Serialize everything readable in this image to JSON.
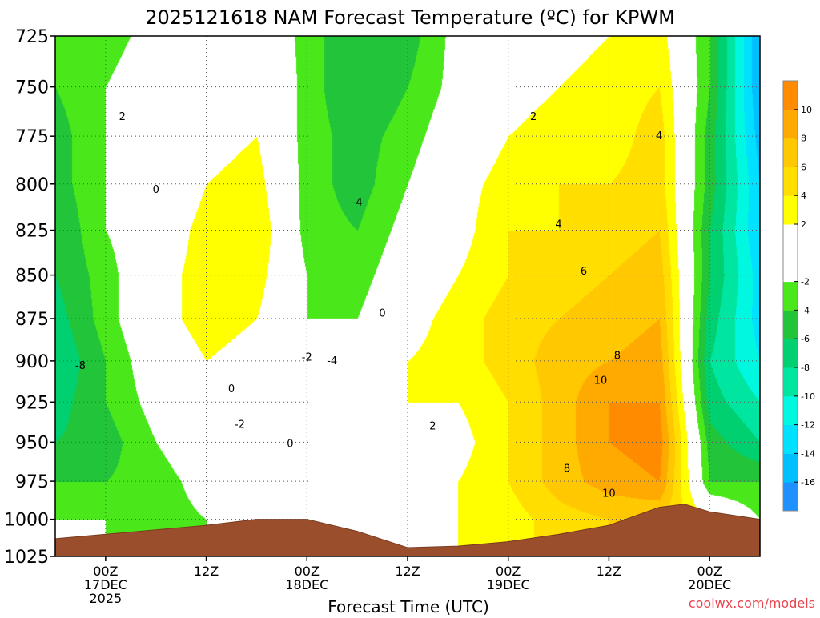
{
  "chart_data": {
    "type": "heatmap",
    "title": "2025121618 NAM Forecast Temperature (ºC) for KPWM",
    "xlabel": "Forecast Time (UTC)",
    "credit": "coolwx.com/models",
    "y_axis": {
      "unit": "hPa",
      "scale": "log-pressure",
      "range": [
        1025,
        725
      ],
      "ticks": [
        "725",
        "750",
        "775",
        "800",
        "825",
        "850",
        "875",
        "900",
        "925",
        "950",
        "975",
        "1000",
        "1025"
      ]
    },
    "x_axis": {
      "range_hours": [
        -6,
        78
      ],
      "ticks": [
        {
          "hour": 0,
          "lines": [
            "00Z",
            "17DEC",
            "2025"
          ]
        },
        {
          "hour": 12,
          "lines": [
            "12Z"
          ]
        },
        {
          "hour": 24,
          "lines": [
            "00Z",
            "18DEC"
          ]
        },
        {
          "hour": 36,
          "lines": [
            "12Z"
          ]
        },
        {
          "hour": 48,
          "lines": [
            "00Z",
            "19DEC"
          ]
        },
        {
          "hour": 60,
          "lines": [
            "12Z"
          ]
        },
        {
          "hour": 72,
          "lines": [
            "00Z",
            "20DEC"
          ]
        }
      ]
    },
    "grid": true,
    "color_scale": {
      "min": -18,
      "max": 12,
      "step": 2,
      "labels": [
        "10",
        "8",
        "6",
        "4",
        "2",
        "-2",
        "-4",
        "-6",
        "-8",
        "-10",
        "-12",
        "-14",
        "-16"
      ],
      "colors": [
        "#1e90ff",
        "#00bfff",
        "#00e0ff",
        "#00f8e0",
        "#00e6a0",
        "#00d070",
        "#22c43a",
        "#4ae81a",
        "#ffffff",
        "#ffffff",
        "#ffff00",
        "#ffde00",
        "#ffc800",
        "#ffaa00",
        "#ff8c00"
      ]
    },
    "pressure_levels": [
      725,
      750,
      775,
      800,
      825,
      850,
      875,
      900,
      925,
      950,
      975,
      1000,
      1025
    ],
    "forecast_hours": [
      -6,
      0,
      6,
      12,
      18,
      24,
      30,
      36,
      42,
      48,
      54,
      60,
      66,
      72,
      78
    ],
    "temperature_grid": [
      [
        -4,
        -3,
        -1,
        0,
        1,
        -3,
        -6,
        -5,
        -1,
        1,
        1,
        2,
        3,
        -4,
        -16
      ],
      [
        -4,
        -2,
        0,
        1,
        2,
        -3,
        -6,
        -4,
        -1,
        1,
        2,
        3,
        4,
        -4,
        -16
      ],
      [
        -5,
        -2,
        0,
        1,
        2,
        -3,
        -5,
        -3,
        0,
        2,
        3,
        3,
        5,
        -5,
        -15
      ],
      [
        -5,
        -2,
        -1,
        2,
        3,
        -3,
        -5,
        -2,
        1,
        3,
        4,
        4,
        5,
        -5,
        -14
      ],
      [
        -6,
        -2,
        0,
        3,
        4,
        -3,
        -4,
        -1,
        1,
        4,
        4,
        5,
        6,
        -6,
        -14
      ],
      [
        -6,
        -3,
        1,
        3,
        3,
        -2,
        -3,
        0,
        2,
        4,
        5,
        6,
        7,
        -6,
        -13
      ],
      [
        -7,
        -3,
        1,
        3,
        2,
        -2,
        -2,
        1,
        3,
        5,
        6,
        7,
        8,
        -7,
        -13
      ],
      [
        -8,
        -4,
        0,
        2,
        1,
        -2,
        -1,
        2,
        3,
        5,
        7,
        8,
        9,
        -8,
        -12
      ],
      [
        -7,
        -4,
        -1,
        1,
        0,
        -1,
        -1,
        2,
        2,
        4,
        7,
        10,
        10,
        -7,
        -10
      ],
      [
        -6,
        -5,
        -2,
        0,
        0,
        0,
        -1,
        1,
        1,
        4,
        7,
        10,
        11,
        -5,
        -8
      ],
      [
        -4,
        -4,
        -3,
        -1,
        0,
        0,
        0,
        1,
        2,
        4,
        7,
        9,
        10,
        -4,
        -4
      ],
      [
        -2,
        -2,
        -3,
        -2,
        0,
        1,
        0,
        0,
        2,
        3,
        5,
        6,
        6,
        2,
        -2
      ],
      [
        -2,
        -2,
        -3,
        -2,
        0,
        1,
        0,
        0,
        2,
        3,
        5,
        6,
        6,
        2,
        -2
      ]
    ],
    "surface_pressure": [
      [
        -6,
        1013
      ],
      [
        6,
        1007
      ],
      [
        12,
        1004
      ],
      [
        18,
        1000
      ],
      [
        24,
        1000
      ],
      [
        30,
        1008
      ],
      [
        36,
        1019
      ],
      [
        42,
        1018
      ],
      [
        48,
        1015
      ],
      [
        54,
        1010
      ],
      [
        60,
        1004
      ],
      [
        66,
        992
      ],
      [
        69,
        990
      ],
      [
        72,
        995
      ],
      [
        78,
        1000
      ]
    ],
    "contour_labels": [
      {
        "text": "2",
        "hour": 2,
        "p": 765
      },
      {
        "text": "0",
        "hour": 6,
        "p": 803
      },
      {
        "text": "-4",
        "hour": 30,
        "p": 810
      },
      {
        "text": "0",
        "hour": 33,
        "p": 872
      },
      {
        "text": "-2",
        "hour": 24,
        "p": 898
      },
      {
        "text": "-4",
        "hour": 27,
        "p": 900
      },
      {
        "text": "0",
        "hour": 15,
        "p": 917
      },
      {
        "text": "-2",
        "hour": 16,
        "p": 939
      },
      {
        "text": "0",
        "hour": 22,
        "p": 951
      },
      {
        "text": "-8",
        "hour": -3,
        "p": 903
      },
      {
        "text": "2",
        "hour": 51,
        "p": 765
      },
      {
        "text": "4",
        "hour": 66,
        "p": 775
      },
      {
        "text": "4",
        "hour": 54,
        "p": 822
      },
      {
        "text": "6",
        "hour": 57,
        "p": 848
      },
      {
        "text": "8",
        "hour": 61,
        "p": 897
      },
      {
        "text": "10",
        "hour": 59,
        "p": 912
      },
      {
        "text": "2",
        "hour": 39,
        "p": 940
      },
      {
        "text": "8",
        "hour": 55,
        "p": 967
      },
      {
        "text": "10",
        "hour": 60,
        "p": 983
      }
    ]
  }
}
